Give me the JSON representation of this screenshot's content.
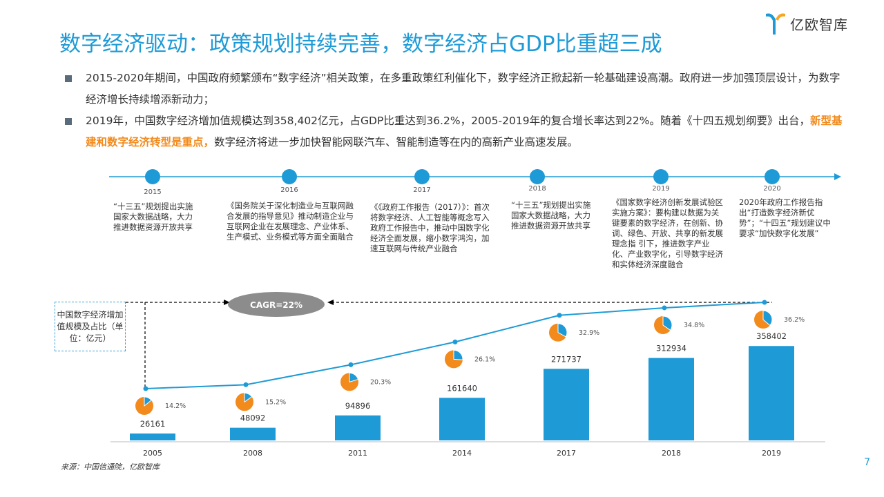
{
  "page": {
    "title": "数字经济驱动：政策规划持续完善，数字经济占GDP比重超三成",
    "logo_text": "亿欧智库",
    "page_number": "7",
    "source": "来源：中国信通院，亿欧智库"
  },
  "bullets": [
    {
      "text": "2015-2020年期间，中国政府频繁颁布“数字经济”相关政策，在多重政策红利催化下，数字经济正掀起新一轮基础建设高潮。政府进一步加强顶层设计，为数字经济增长持续增添新动力；"
    },
    {
      "text_before": "2019年，中国数字经济增加值规模达到358,402亿元，占GDP比重达到36.2%，2005-2019年的复合增长率达到22%。随着《十四五规划纲要》出台，",
      "highlight": "新型基建和数字经济转型是重点，",
      "text_after": "数字经济将进一步加快智能网联汽车、智能制造等在内的高新产业高速发展。"
    }
  ],
  "timeline": [
    {
      "year": "2015",
      "text": "“十三五”规划提出实施国家大数据战略，大力推进数据资源开放共享"
    },
    {
      "year": "2016",
      "text": "《国务院关于深化制造业与互联网融合发展的指导意见》推动制造企业与互联网企业在发展理念、产业体系、生产模式、业务模式等方面全面融合"
    },
    {
      "year": "2017",
      "text": "《《政府工作报告（2017）》：首次将数字经济、人工智能等概念写入政府工作报告中，推动中国数字化经济全面发展，缩小数字鸿沟，加速互联网与传统产业融合"
    },
    {
      "year": "2018",
      "text": "“十三五”规划提出实施国家大数据战略，大力推进数据资源开放共享"
    },
    {
      "year": "2019",
      "text": "《国家数字经济创新发展试验区实施方案》：要构建以数据为关键要素的数字经济，在创新、协调、绿色、开放、共享的新发展理念指 引下，推进数字产业化、产业数字化，引导数字经济和实体经济深度融合"
    },
    {
      "year": "2020",
      "text": "2020年政府工作报告指出“打造数字经济新优势”；“十四五”规划建议中要求“加快数字化发展”"
    }
  ],
  "legend": {
    "text": "中国数字经济增加值规模及占比（单位：亿元）"
  },
  "cagr": {
    "text": "CAGR=22%"
  },
  "colors": {
    "accent": "#1e9bd7",
    "bar": "#1e9bd7",
    "pie_orange": "#f28a1c",
    "highlight": "#f28a1c"
  },
  "chart_data": {
    "type": "bar",
    "title": "中国数字经济增加值规模及占比（单位：亿元）",
    "categories": [
      "2005",
      "2008",
      "2011",
      "2014",
      "2017",
      "2018",
      "2019"
    ],
    "series": [
      {
        "name": "数字经济增加值规模（亿元）",
        "type": "bar",
        "values": [
          26161,
          48092,
          94896,
          161640,
          271737,
          312934,
          358402
        ]
      },
      {
        "name": "占GDP比重",
        "type": "line+pie",
        "values": [
          14.2,
          15.2,
          20.3,
          26.1,
          32.9,
          34.8,
          36.2
        ],
        "labels": [
          "14.2%",
          "15.2%",
          "20.3%",
          "26.1%",
          "32.9%",
          "34.8%",
          "36.2%"
        ]
      }
    ],
    "value_labels": [
      "26161",
      "48092",
      "94896",
      "161640",
      "271737",
      "312934",
      "358402"
    ],
    "ylim": [
      0,
      380000
    ],
    "share_ylim": [
      10,
      40
    ],
    "annotation": "CAGR=22%"
  }
}
